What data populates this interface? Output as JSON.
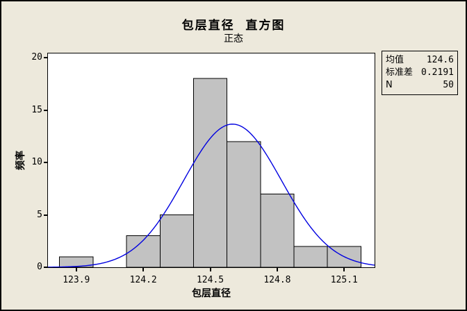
{
  "window": {
    "background_color": "#EDE9DC",
    "border_color": "#000000",
    "plot_background_color": "#FFFFFF"
  },
  "title": "包层直径  直方图",
  "subtitle": "正态",
  "legend": {
    "rows": [
      {
        "label": "均值",
        "value": "124.6"
      },
      {
        "label": "标准差",
        "value": "0.2191"
      },
      {
        "label": "N",
        "value": "50"
      }
    ]
  },
  "chart_data": {
    "type": "bar",
    "subtype": "histogram",
    "title": "包层直径  直方图",
    "subtitle": "正态",
    "xlabel": "包层直径",
    "ylabel": "频率",
    "bin_width": 0.15,
    "bin_centers": [
      123.9,
      124.05,
      124.2,
      124.35,
      124.5,
      124.65,
      124.8,
      124.95,
      125.1
    ],
    "counts": [
      1,
      0,
      3,
      5,
      18,
      12,
      7,
      2,
      2
    ],
    "total_n": 50,
    "overlay_curve": {
      "type": "normal",
      "mean": 124.6,
      "stdev": 0.2191,
      "n": 50,
      "color": "#0000E0"
    },
    "x_ticks": [
      {
        "value": 123.9,
        "label": "123.9"
      },
      {
        "value": 124.2,
        "label": "124.2"
      },
      {
        "value": 124.5,
        "label": "124.5"
      },
      {
        "value": 124.8,
        "label": "124.8"
      },
      {
        "value": 125.1,
        "label": "125.1"
      }
    ],
    "y_ticks": [
      {
        "value": 0,
        "label": "0"
      },
      {
        "value": 5,
        "label": "5"
      },
      {
        "value": 10,
        "label": "10"
      },
      {
        "value": 15,
        "label": "15"
      },
      {
        "value": 20,
        "label": "20"
      }
    ],
    "x_range": [
      123.773,
      125.236
    ],
    "y_range": [
      0,
      20.4
    ],
    "grid": false,
    "legend_position": "top-right",
    "bar_fill": "#C2C2C2",
    "bar_stroke": "#000000"
  }
}
